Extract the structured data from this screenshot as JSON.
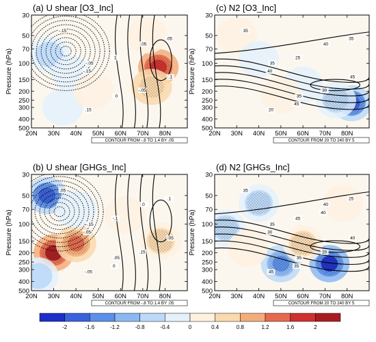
{
  "chart_data": [
    {
      "id": "a",
      "type": "heatmap",
      "title": "(a) U shear [O3_Inc]",
      "ylabel": "Pressure (hPa)",
      "x_ticks": [
        "20N",
        "30N",
        "40N",
        "50N",
        "60N",
        "70N",
        "80N"
      ],
      "y_ticks": [
        "30",
        "50",
        "70",
        "100",
        "150",
        "200",
        "250",
        "300",
        "400",
        "500"
      ],
      "xlim": [
        20,
        90
      ],
      "ylim_hpa": [
        500,
        30
      ],
      "y_scale": "log",
      "footnote": "CONTOUR FROM -.8 TO 1.4 BY .05",
      "shading_features": [
        {
          "lat": 77,
          "p": 110,
          "value": 1.9
        },
        {
          "lat": 74,
          "p": 180,
          "value": 1.0
        },
        {
          "lat": 72,
          "p": 50,
          "value": 0.4
        },
        {
          "lat": 28,
          "p": 80,
          "value": -0.6
        },
        {
          "lat": 38,
          "p": 130,
          "value": -0.3
        },
        {
          "lat": 34,
          "p": 300,
          "value": -0.5
        },
        {
          "lat": 48,
          "p": 200,
          "value": 0.3
        }
      ],
      "contour_labels": [
        "-.15",
        "-.05",
        "0",
        ".05",
        ".1",
        ".15",
        "1",
        "-.05",
        ".05",
        "-.15"
      ]
    },
    {
      "id": "b",
      "type": "heatmap",
      "title": "(b) U shear [GHGs_Inc]",
      "ylabel": "Pressure (hPa)",
      "x_ticks": [
        "20N",
        "30N",
        "40N",
        "50N",
        "60N",
        "70N",
        "80N"
      ],
      "y_ticks": [
        "30",
        "50",
        "70",
        "100",
        "150",
        "200",
        "250",
        "300",
        "400",
        "500"
      ],
      "xlim": [
        20,
        90
      ],
      "ylim_hpa": [
        500,
        30
      ],
      "y_scale": "log",
      "footnote": "CONTOUR FROM -.8 TO 1.4 BY .05",
      "shading_features": [
        {
          "lat": 30,
          "p": 200,
          "value": 2.0
        },
        {
          "lat": 40,
          "p": 160,
          "value": 1.3
        },
        {
          "lat": 27,
          "p": 50,
          "value": -1.6
        },
        {
          "lat": 40,
          "p": 70,
          "value": -0.4
        },
        {
          "lat": 78,
          "p": 150,
          "value": 0.8
        },
        {
          "lat": 62,
          "p": 80,
          "value": 0.3
        },
        {
          "lat": 23,
          "p": 350,
          "value": -0.6
        }
      ],
      "contour_labels": [
        ".05",
        "-.15",
        ".05",
        "0",
        ".05",
        "-.05",
        "-.1",
        ".15",
        ".1",
        "-.05",
        "0"
      ]
    },
    {
      "id": "c",
      "type": "heatmap",
      "title": "(c) N2 [O3_Inc]",
      "ylabel": "Pressure (hPa)",
      "x_ticks": [
        "20N",
        "30N",
        "40N",
        "50N",
        "60N",
        "70N",
        "80N"
      ],
      "y_ticks": [
        "30",
        "50",
        "70",
        "100",
        "150",
        "200",
        "250",
        "300",
        "400",
        "500"
      ],
      "xlim": [
        20,
        90
      ],
      "ylim_hpa": [
        500,
        30
      ],
      "y_scale": "log",
      "footnote": "CONTOUR FROM 20 TO 240 BY 5",
      "shading_features": [
        {
          "lat": 82,
          "p": 270,
          "value": -1.6
        },
        {
          "lat": 75,
          "p": 250,
          "value": -0.8
        },
        {
          "lat": 30,
          "p": 50,
          "value": 0.5
        },
        {
          "lat": 40,
          "p": 90,
          "value": -0.3
        },
        {
          "lat": 60,
          "p": 170,
          "value": -0.3
        },
        {
          "lat": 50,
          "p": 220,
          "value": 0.2
        }
      ],
      "contour_labels": [
        "35",
        "35",
        "35",
        "40",
        "45",
        "20",
        "25",
        "30",
        "35",
        "40",
        "45"
      ]
    },
    {
      "id": "d",
      "type": "heatmap",
      "title": "(d) N2 [GHGs_Inc]",
      "ylabel": "Pressure (hPa)",
      "x_ticks": [
        "20N",
        "30N",
        "40N",
        "50N",
        "60N",
        "70N",
        "80N"
      ],
      "y_ticks": [
        "30",
        "50",
        "70",
        "100",
        "150",
        "200",
        "250",
        "300",
        "400",
        "500"
      ],
      "xlim": [
        20,
        90
      ],
      "ylim_hpa": [
        500,
        30
      ],
      "y_scale": "log",
      "footnote": "CONTOUR FROM 20 TO 240 BY 5",
      "shading_features": [
        {
          "lat": 72,
          "p": 260,
          "value": -2.0
        },
        {
          "lat": 50,
          "p": 260,
          "value": -1.2
        },
        {
          "lat": 60,
          "p": 160,
          "value": 0.8
        },
        {
          "lat": 40,
          "p": 60,
          "value": -0.8
        },
        {
          "lat": 25,
          "p": 110,
          "value": -0.8
        },
        {
          "lat": 35,
          "p": 180,
          "value": 0.4
        },
        {
          "lat": 78,
          "p": 60,
          "value": 0.3
        }
      ],
      "contour_labels": [
        "35",
        "35",
        "35",
        "40",
        "40",
        "45",
        "45",
        "20",
        "25",
        "30",
        "35",
        "40"
      ]
    }
  ],
  "colorbar": {
    "ticks": [
      "-2",
      "-1.6",
      "-1.2",
      "-0.8",
      "-0.4",
      "0",
      "0.4",
      "0.8",
      "1.2",
      "1.6",
      "2"
    ],
    "colors": [
      "#1d2fc8",
      "#3a62dd",
      "#5b8fe9",
      "#8cb8f2",
      "#bcd9f7",
      "#e4f1fb",
      "#fdf1e0",
      "#f9d9ae",
      "#f3ad7a",
      "#e66b4e",
      "#cf3030",
      "#a81d22"
    ]
  }
}
